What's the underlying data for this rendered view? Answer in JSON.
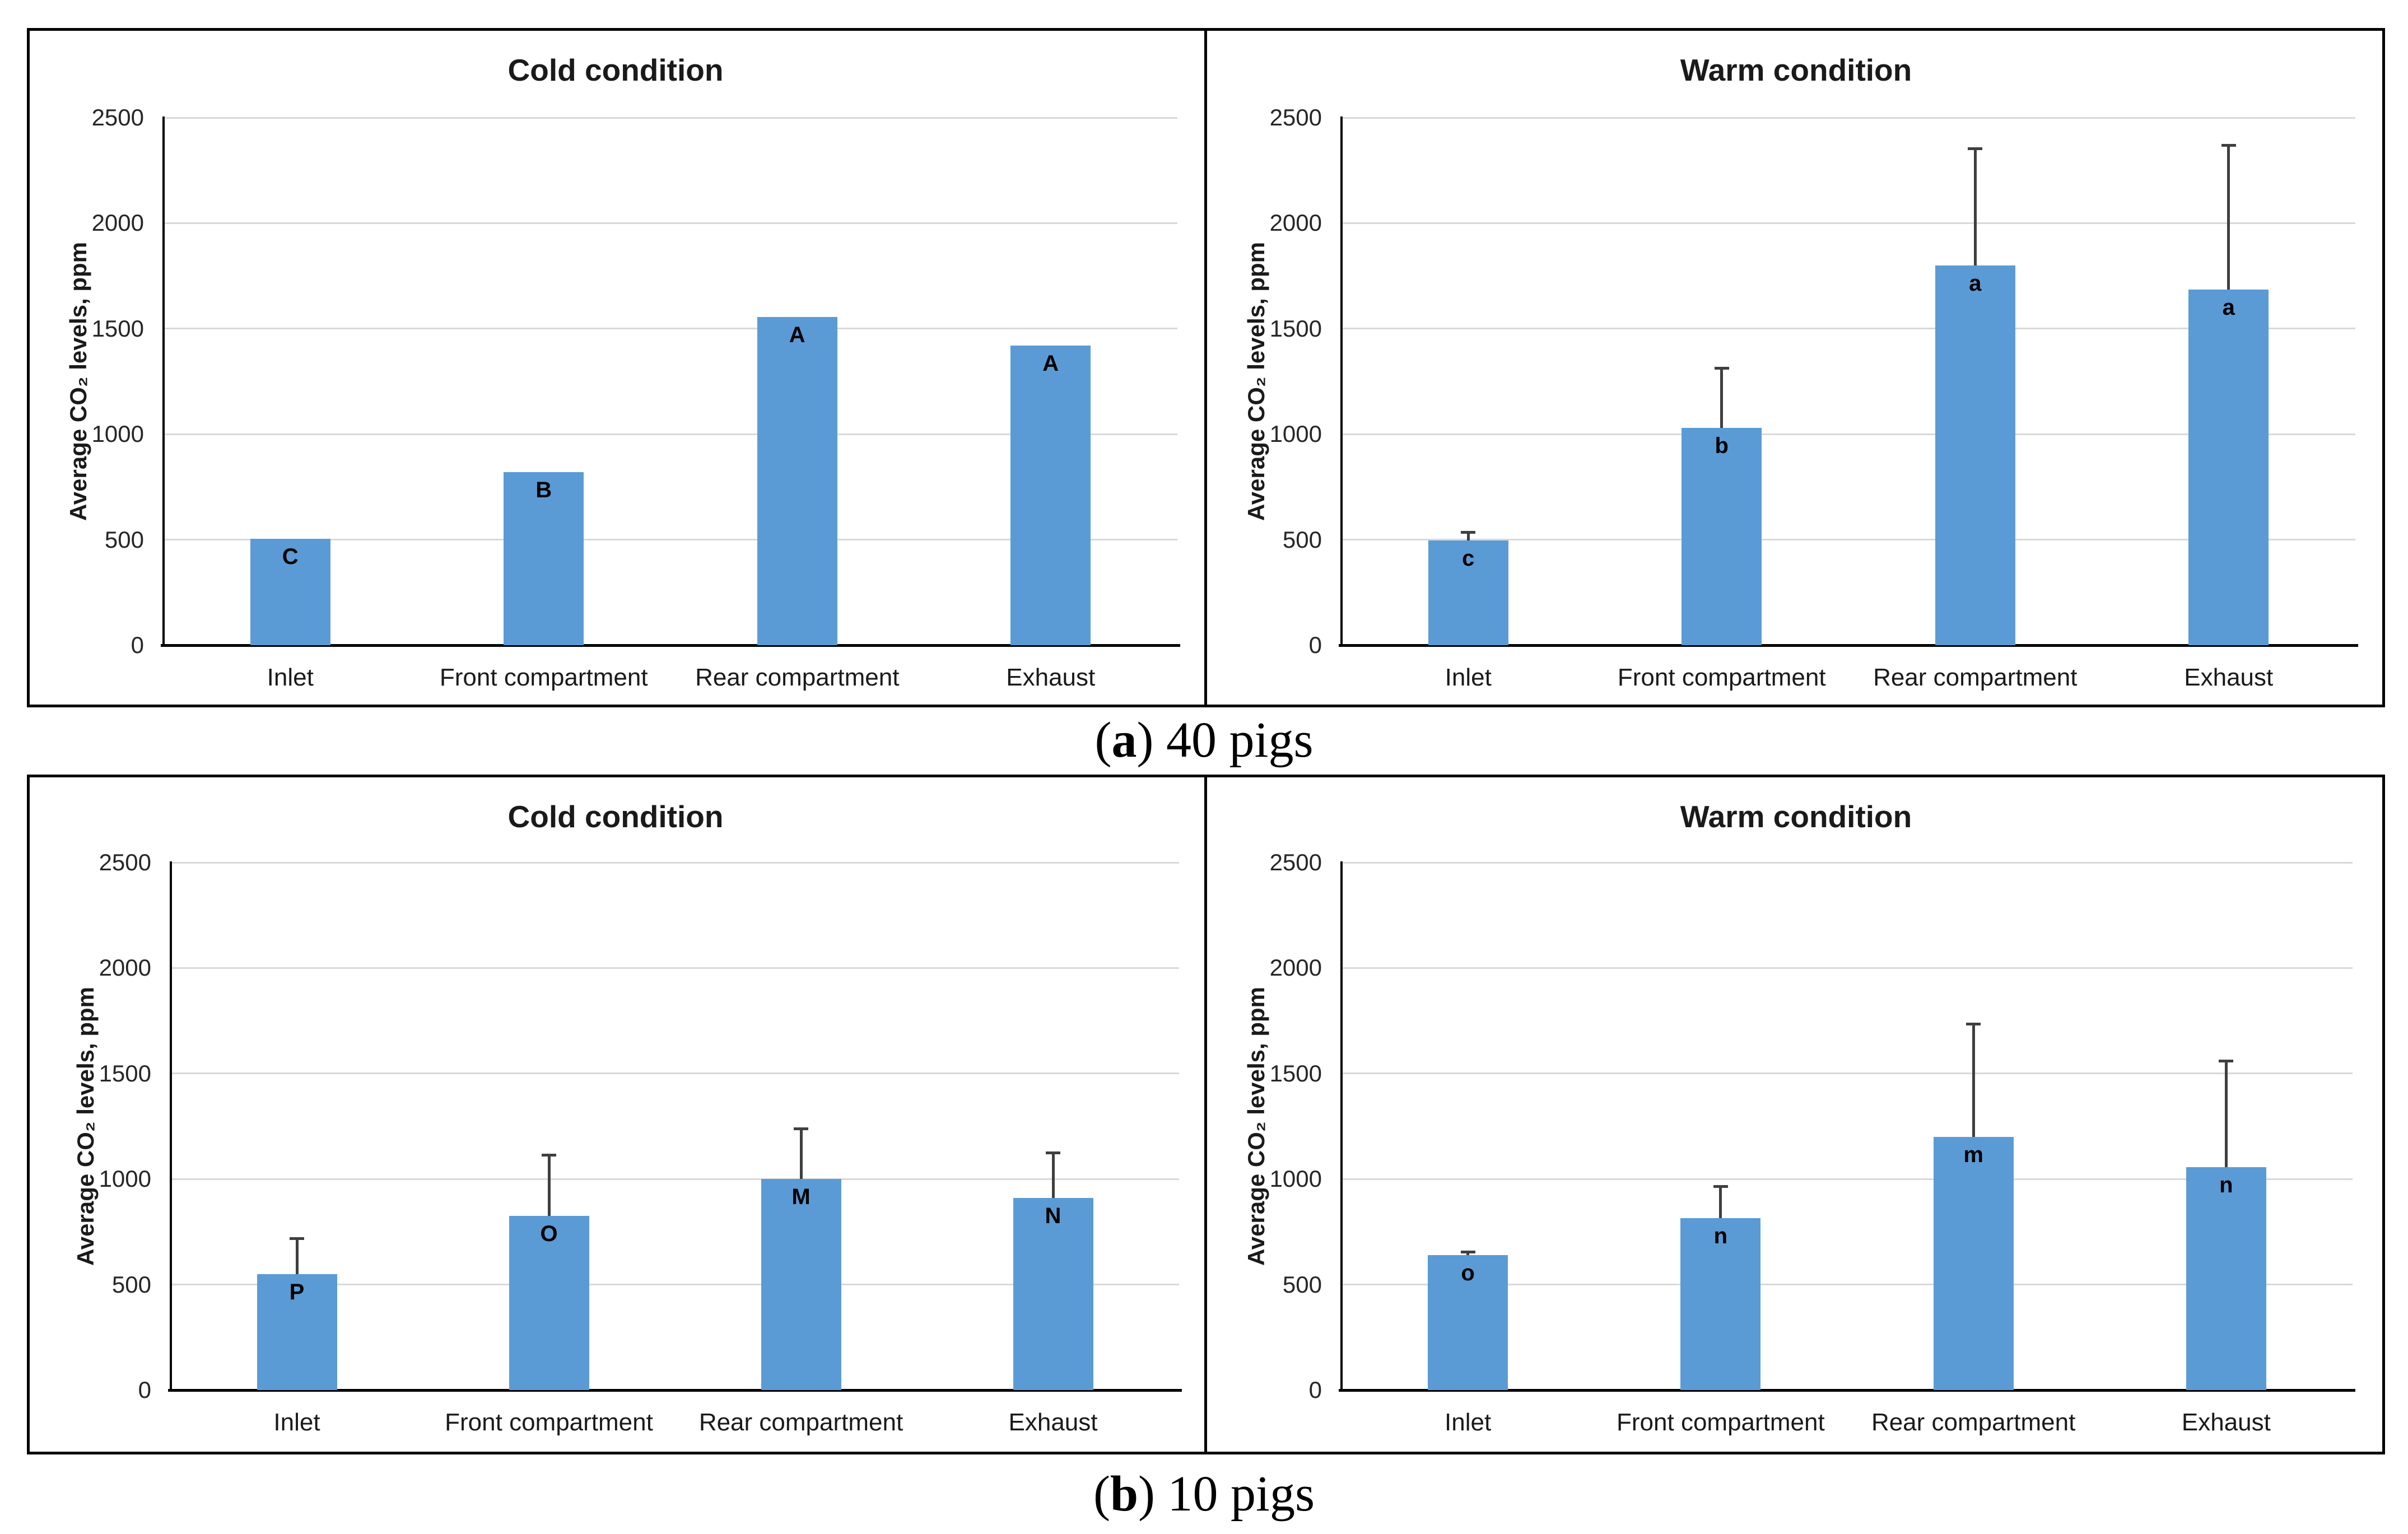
{
  "figure": {
    "background": "#ffffff",
    "panel_border_color": "#000000",
    "bar_color": "#5B9BD5",
    "gridline_color": "#d9d9d9",
    "error_bar_color": "#3f3f3f",
    "panels": [
      {
        "id": "a",
        "caption": {
          "open": "(",
          "letter": "a",
          "rest": ") 40 pigs"
        }
      },
      {
        "id": "b",
        "caption": {
          "open": "(",
          "letter": "b",
          "rest": ") 10 pigs"
        }
      }
    ]
  },
  "chart_data": [
    {
      "type": "bar",
      "panel": "a",
      "position": "left",
      "title": "Cold condition",
      "ylabel": "Average CO₂ levels, ppm",
      "xlabel": "",
      "categories": [
        "Inlet",
        "Front compartment",
        "Rear compartment",
        "Exhaust"
      ],
      "values": [
        505,
        820,
        1555,
        1420
      ],
      "bar_labels": [
        "C",
        "B",
        "A",
        "A"
      ],
      "error_upper": [
        null,
        null,
        null,
        null
      ],
      "ylim": [
        0,
        2500
      ],
      "yticks": [
        0,
        500,
        1000,
        1500,
        2000,
        2500
      ],
      "grid": true,
      "legend": "none",
      "bar_color": "#5B9BD5"
    },
    {
      "type": "bar",
      "panel": "a",
      "position": "right",
      "title": "Warm condition",
      "ylabel": "Average CO₂ levels, ppm",
      "xlabel": "",
      "categories": [
        "Inlet",
        "Front compartment",
        "Rear compartment",
        "Exhaust"
      ],
      "values": [
        495,
        1030,
        1800,
        1685
      ],
      "bar_labels": [
        "c",
        "b",
        "a",
        "a"
      ],
      "error_upper": [
        535,
        1315,
        2355,
        2370
      ],
      "ylim": [
        0,
        2500
      ],
      "yticks": [
        0,
        500,
        1000,
        1500,
        2000,
        2500
      ],
      "grid": true,
      "legend": "none",
      "bar_color": "#5B9BD5"
    },
    {
      "type": "bar",
      "panel": "b",
      "position": "left",
      "title": "Cold condition",
      "ylabel": "Average CO₂ levels, ppm",
      "xlabel": "",
      "categories": [
        "Inlet",
        "Front compartment",
        "Rear compartment",
        "Exhaust"
      ],
      "values": [
        550,
        825,
        1000,
        910
      ],
      "bar_labels": [
        "P",
        "O",
        "M",
        "N"
      ],
      "error_upper": [
        720,
        1115,
        1240,
        1125
      ],
      "ylim": [
        0,
        2500
      ],
      "yticks": [
        0,
        500,
        1000,
        1500,
        2000,
        2500
      ],
      "grid": true,
      "legend": "none",
      "bar_color": "#5B9BD5"
    },
    {
      "type": "bar",
      "panel": "b",
      "position": "right",
      "title": "Warm condition",
      "ylabel": "Average CO₂ levels, ppm",
      "xlabel": "",
      "categories": [
        "Inlet",
        "Front compartment",
        "Rear compartment",
        "Exhaust"
      ],
      "values": [
        640,
        815,
        1200,
        1055
      ],
      "bar_labels": [
        "o",
        "n",
        "m",
        "n"
      ],
      "error_upper": [
        655,
        965,
        1735,
        1560
      ],
      "ylim": [
        0,
        2500
      ],
      "yticks": [
        0,
        500,
        1000,
        1500,
        2000,
        2500
      ],
      "grid": true,
      "legend": "none",
      "bar_color": "#5B9BD5"
    }
  ]
}
